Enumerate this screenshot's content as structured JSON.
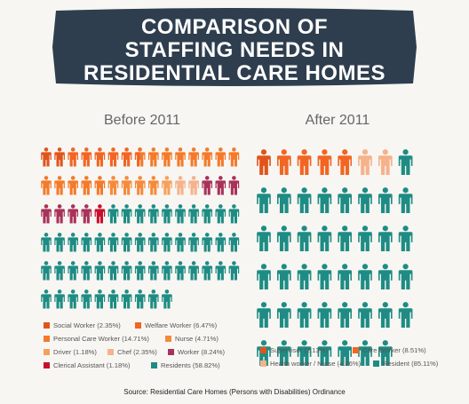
{
  "title_lines": [
    "COMPARISON OF",
    "STAFFING NEEDS IN",
    "RESIDENTIAL CARE HOMES"
  ],
  "source": "Source: Residential Care Homes (Persons with Disabilities) Ordinance",
  "colors": {
    "banner": "#2e3e4e",
    "social_worker": "#e0541b",
    "welfare_worker": "#f26522",
    "personal_care_worker": "#f47a2a",
    "nurse": "#f58a3b",
    "driver": "#f7a05a",
    "chef": "#f6b28b",
    "worker": "#a8325a",
    "clerical_assistant": "#c8102e",
    "residents": "#1e8c84",
    "supervisor": "#e0541b",
    "care_worker": "#f26522",
    "health_worker_nurse": "#f6b28b",
    "resident": "#1e8c84"
  },
  "icon": "person-icon",
  "chart_data": [
    {
      "type": "pictograph",
      "title": "Before 2011",
      "total_icons": 85,
      "icons_per_row": 15,
      "series": [
        {
          "name": "Social Worker",
          "label": "Social Worker (2.35%)",
          "percent": 2.35,
          "count": 2,
          "color_key": "social_worker"
        },
        {
          "name": "Welfare Worker",
          "label": "Welfare Worker (6.47%)",
          "percent": 6.47,
          "count": 5.5,
          "color_key": "welfare_worker"
        },
        {
          "name": "Personal Care Worker",
          "label": "Personal Care Worker (14.71%)",
          "percent": 14.71,
          "count": 12.5,
          "color_key": "personal_care_worker"
        },
        {
          "name": "Nurse",
          "label": "Nurse (4.71%)",
          "percent": 4.71,
          "count": 4,
          "color_key": "nurse"
        },
        {
          "name": "Driver",
          "label": "Driver (1.18%)",
          "percent": 1.18,
          "count": 1,
          "color_key": "driver"
        },
        {
          "name": "Chef",
          "label": "Chef (2.35%)",
          "percent": 2.35,
          "count": 2,
          "color_key": "chef"
        },
        {
          "name": "Worker",
          "label": "Worker (8.24%)",
          "percent": 8.24,
          "count": 7,
          "color_key": "worker"
        },
        {
          "name": "Clerical Assistant",
          "label": "Clerical Assistant (1.18%)",
          "percent": 1.18,
          "count": 1,
          "color_key": "clerical_assistant"
        },
        {
          "name": "Residents",
          "label": "Residents (58.82%)",
          "percent": 58.82,
          "count": 50,
          "color_key": "residents"
        }
      ]
    },
    {
      "type": "pictograph",
      "title": "After 2011",
      "total_icons": 47,
      "icons_per_row": 8,
      "series": [
        {
          "name": "Supervisor",
          "label": "Supervisor (2.13%)",
          "percent": 2.13,
          "count": 1,
          "color_key": "supervisor"
        },
        {
          "name": "Care Worker",
          "label": "Care Worker (8.51%)",
          "percent": 8.51,
          "count": 4,
          "color_key": "care_worker"
        },
        {
          "name": "Health worker / Nurse",
          "label": "Health worker / Nurse (4.26%)",
          "percent": 4.26,
          "count": 2,
          "color_key": "health_worker_nurse"
        },
        {
          "name": "Resident",
          "label": "Resident (85.11%)",
          "percent": 85.11,
          "count": 40,
          "color_key": "resident"
        }
      ]
    }
  ]
}
